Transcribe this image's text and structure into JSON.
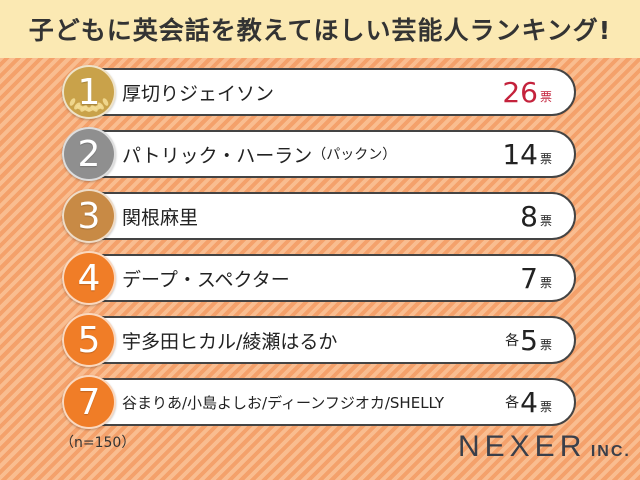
{
  "header": {
    "title": "子どもに英会話を教えてほしい芸能人ランキング!"
  },
  "chart_data": {
    "type": "table",
    "rows": [
      {
        "rank": "1",
        "name": "厚切りジェイソン",
        "name_paren": "",
        "prefix": "",
        "votes": 26,
        "unit": "票",
        "value_color": "#c4223c",
        "medal": "#c9a24a"
      },
      {
        "rank": "2",
        "name": "パトリック・ハーラン",
        "name_paren": "（パックン）",
        "prefix": "",
        "votes": 14,
        "unit": "票",
        "value_color": "#222222",
        "medal": "#8f8f8f"
      },
      {
        "rank": "3",
        "name": "関根麻里",
        "name_paren": "",
        "prefix": "",
        "votes": 8,
        "unit": "票",
        "value_color": "#222222",
        "medal": "#c88a45"
      },
      {
        "rank": "4",
        "name": "デープ・スペクター",
        "name_paren": "",
        "prefix": "",
        "votes": 7,
        "unit": "票",
        "value_color": "#222222",
        "medal": "#f07d27"
      },
      {
        "rank": "5",
        "name": "宇多田ヒカル/綾瀬はるか",
        "name_paren": "",
        "prefix": "各",
        "votes": 5,
        "unit": "票",
        "value_color": "#222222",
        "medal": "#f07d27"
      },
      {
        "rank": "7",
        "name": "谷まりあ/小島よしお/ディーンフジオカ/SHELLY",
        "name_paren": "",
        "prefix": "各",
        "votes": 4,
        "unit": "票",
        "value_color": "#222222",
        "medal": "#f07d27"
      }
    ]
  },
  "footnote": "（n=150）",
  "logo": {
    "main": "NEXER",
    "sub": "INC."
  }
}
